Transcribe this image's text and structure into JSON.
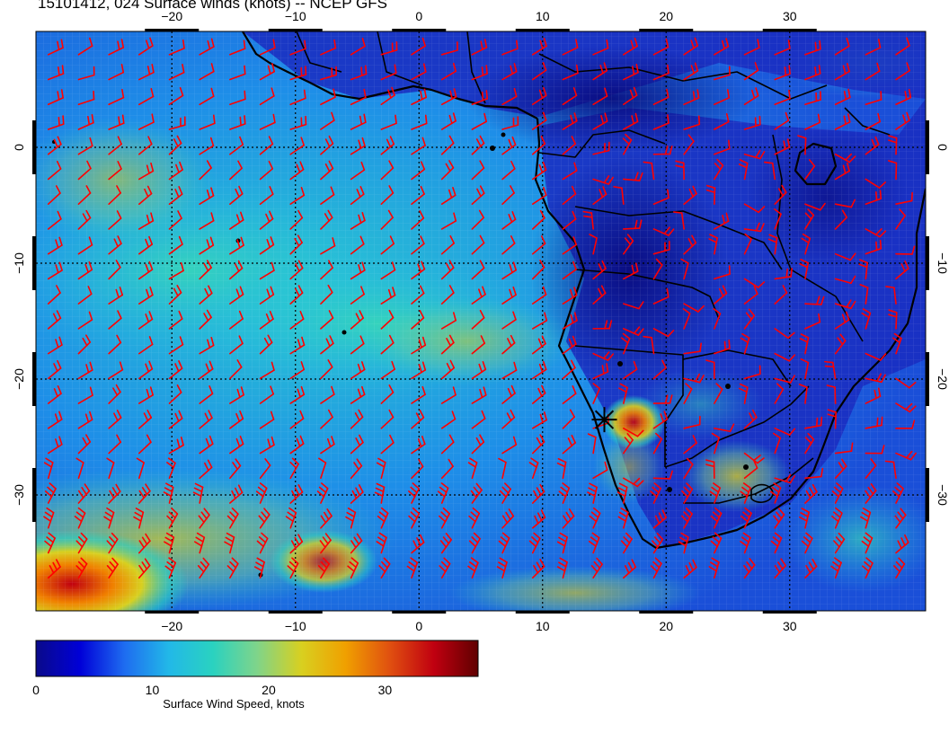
{
  "title": "15101412, 024 Surface winds (knots) -- NCEP GFS",
  "map": {
    "lon_range": [
      -31,
      41
    ],
    "lat_range": [
      -40,
      10
    ],
    "lon_ticks": [
      -20,
      -10,
      0,
      10,
      20,
      30
    ],
    "lat_ticks": [
      0,
      -10,
      -20,
      -30
    ],
    "lon_tick_labels": [
      "−20",
      "−10",
      "0",
      "10",
      "20",
      "30"
    ],
    "lat_tick_labels": [
      "0",
      "−10",
      "−20",
      "−30"
    ],
    "gridlines": true,
    "barb_color": "#ff0000",
    "coast_color": "#000000",
    "marker": {
      "lon": 15,
      "lat": -23.5,
      "symbol": "star"
    }
  },
  "colorbar": {
    "min": 0,
    "max": 38,
    "ticks": [
      0,
      10,
      20,
      30
    ],
    "tick_labels": [
      "0",
      "10",
      "20",
      "30"
    ],
    "label": "Surface Wind Speed, knots",
    "colors": [
      "#0a0a8a",
      "#0000d8",
      "#1e6cf0",
      "#22b8e8",
      "#2ad2c0",
      "#7fd48a",
      "#d8d020",
      "#f0a000",
      "#e05010",
      "#c00010",
      "#600000"
    ]
  }
}
